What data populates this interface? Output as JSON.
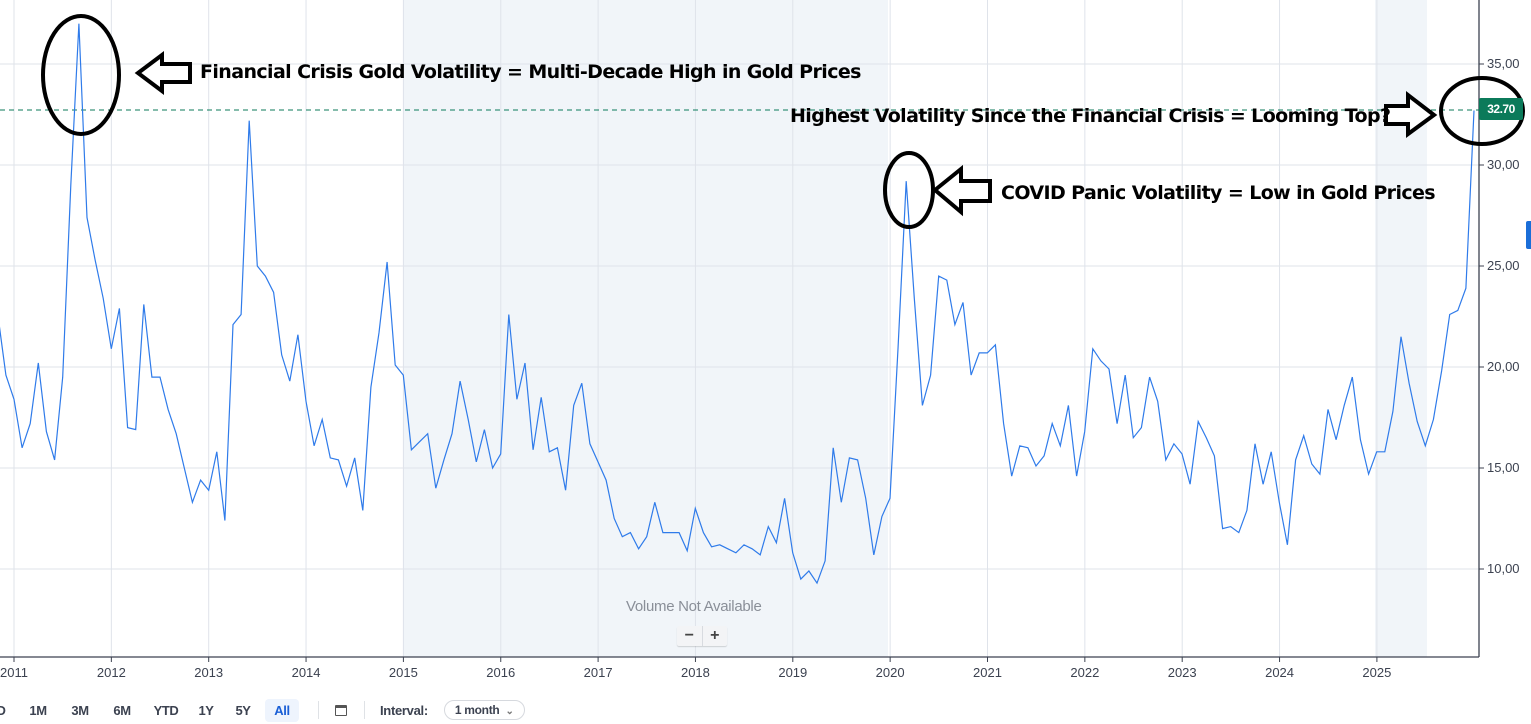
{
  "chart_data": {
    "type": "line",
    "title": "",
    "xlabel": "",
    "ylabel": "",
    "ylim": [
      6,
      38
    ],
    "y_ticks": [
      "10,00",
      "15,00",
      "20,00",
      "25,00",
      "30,00",
      "35,00"
    ],
    "x_ticks": [
      "2011",
      "2012",
      "2013",
      "2014",
      "2015",
      "2016",
      "2017",
      "2018",
      "2019",
      "2020",
      "2021",
      "2022",
      "2023",
      "2024",
      "2025"
    ],
    "grid": true,
    "current_value": "32.70",
    "start_date": "2010-11",
    "interval": "1 month",
    "series": [
      {
        "name": "Gold Volatility",
        "color": "#2f7bea",
        "values": [
          22.6,
          19.6,
          18.4,
          16.0,
          17.2,
          20.2,
          16.8,
          15.4,
          19.5,
          29.0,
          37.0,
          27.4,
          25.3,
          23.4,
          20.9,
          22.9,
          17.0,
          16.9,
          23.1,
          19.5,
          19.5,
          17.9,
          16.7,
          15.0,
          13.3,
          14.4,
          13.9,
          15.8,
          12.4,
          22.1,
          22.6,
          32.2,
          25.0,
          24.5,
          23.7,
          20.6,
          19.3,
          21.6,
          18.3,
          16.1,
          17.4,
          15.5,
          15.4,
          14.1,
          15.5,
          12.9,
          19.0,
          21.7,
          25.2,
          20.1,
          19.6,
          15.9,
          16.3,
          16.7,
          14.0,
          15.4,
          16.7,
          19.3,
          17.4,
          15.3,
          16.9,
          15.0,
          15.7,
          22.6,
          18.4,
          20.2,
          15.9,
          18.5,
          15.8,
          16.0,
          13.9,
          18.1,
          19.2,
          16.2,
          15.3,
          14.4,
          12.5,
          11.6,
          11.8,
          11.0,
          11.6,
          13.3,
          11.8,
          11.8,
          11.8,
          10.9,
          13.0,
          11.8,
          11.1,
          11.2,
          11.0,
          10.8,
          11.2,
          11.0,
          10.7,
          12.1,
          11.3,
          13.5,
          10.8,
          9.5,
          9.9,
          9.3,
          10.4,
          16.0,
          13.3,
          15.5,
          15.4,
          13.5,
          10.7,
          12.6,
          13.5,
          21.0,
          29.2,
          23.4,
          18.1,
          19.6,
          24.5,
          24.3,
          22.1,
          23.2,
          19.6,
          20.7,
          20.7,
          21.1,
          17.2,
          14.6,
          16.1,
          16.0,
          15.1,
          15.6,
          17.2,
          16.1,
          18.1,
          14.6,
          16.8,
          20.9,
          20.3,
          19.9,
          17.2,
          19.6,
          16.5,
          17.0,
          19.5,
          18.3,
          15.4,
          16.2,
          15.7,
          14.2,
          17.3,
          16.5,
          15.6,
          12.0,
          12.1,
          11.8,
          12.9,
          16.2,
          14.2,
          15.8,
          13.3,
          11.2,
          15.4,
          16.6,
          15.2,
          14.7,
          17.9,
          16.4,
          18.1,
          19.5,
          16.4,
          14.7,
          15.8,
          15.8,
          17.8,
          21.5,
          19.2,
          17.3,
          16.1,
          17.4,
          19.8,
          22.6,
          22.8,
          23.9,
          32.7
        ]
      }
    ],
    "annotations": [
      {
        "text": "Financial Crisis Gold Volatility = Multi-Decade High in Gold Prices",
        "target": "2011-09 peak"
      },
      {
        "text": "Highest Volatility Since the Financial Crisis = Looming Top?",
        "target": "latest value 32.70"
      },
      {
        "text": "COVID Panic Volatility = Low in Gold Prices",
        "target": "2020-03 peak"
      }
    ]
  },
  "chart": {
    "price_badge": "32.70",
    "volume_note": "Volume Not Available",
    "zoom_out": "−",
    "zoom_in": "+",
    "annotations": {
      "financial_crisis": "Financial Crisis Gold Volatility = Multi-Decade High in Gold Prices",
      "highest_since": "Highest Volatility Since the Financial Crisis = Looming Top?",
      "covid": "COVID Panic Volatility = Low in Gold Prices"
    }
  },
  "toolbar": {
    "ranges": [
      "D",
      "1M",
      "3M",
      "6M",
      "YTD",
      "1Y",
      "5Y",
      "All"
    ],
    "active_range": "All",
    "calendar_icon": "calendar-icon",
    "interval_label": "Interval:",
    "interval_value": "1 month",
    "interval_caret": "⌄"
  },
  "colors": {
    "line": "#2f7bea",
    "badge": "#0b7a5a",
    "shade": "#f1f5f9",
    "grid": "#dfe3ea",
    "axis": "#3c4250"
  }
}
